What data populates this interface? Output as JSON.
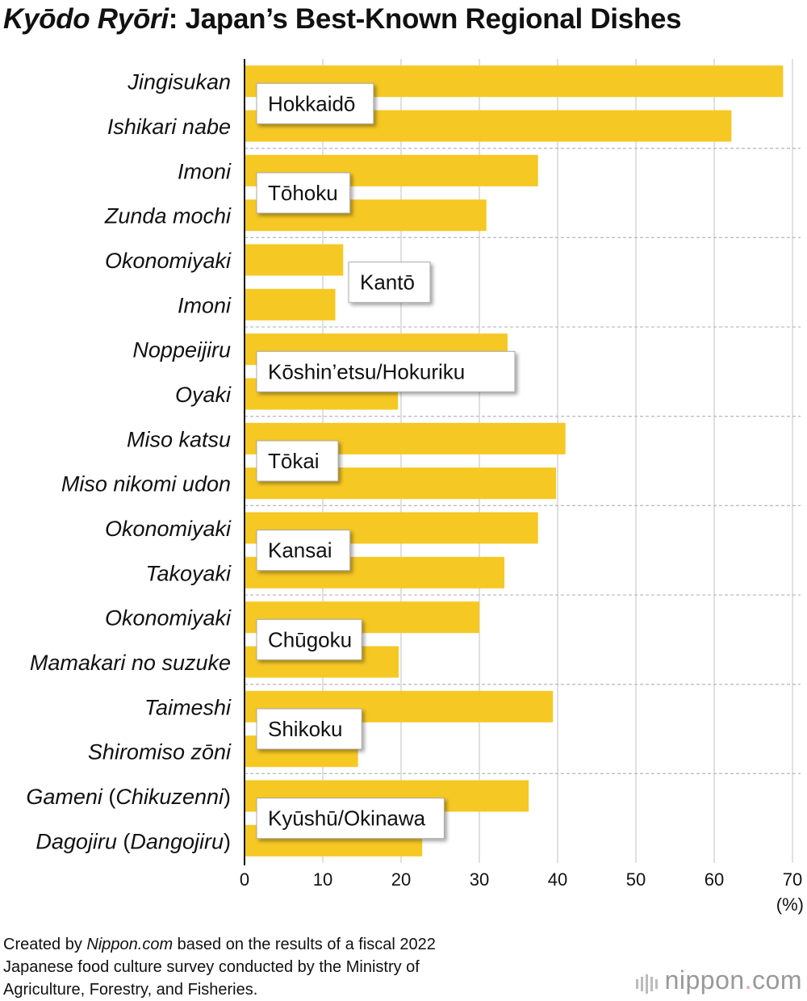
{
  "title": {
    "italic_part": "Kyōdo Ryōri",
    "rest": ": Japan’s Best-Known Regional Dishes"
  },
  "chart_data": {
    "type": "bar",
    "orientation": "horizontal",
    "unit_label": "(%)",
    "xlim": [
      0,
      70
    ],
    "xticks": [
      0,
      10,
      20,
      30,
      40,
      50,
      60,
      70
    ],
    "grid": true,
    "bar_color": "#f6c823",
    "categories": [
      {
        "dish": "Jingisukan",
        "region": "Hokkaidō",
        "value": 68.8
      },
      {
        "dish": "Ishikari nabe",
        "region": "Hokkaidō",
        "value": 62.2
      },
      {
        "dish": "Imoni",
        "region": "Tōhoku",
        "value": 37.5
      },
      {
        "dish": "Zunda mochi",
        "region": "Tōhoku",
        "value": 30.9
      },
      {
        "dish": "Okonomiyaki",
        "region": "Kantō",
        "value": 12.6
      },
      {
        "dish": "Imoni",
        "region": "Kantō",
        "value": 11.6
      },
      {
        "dish": "Noppeijiru",
        "region": "Kōshin’etsu/Hokuriku",
        "value": 33.6
      },
      {
        "dish": "Oyaki",
        "region": "Kōshin’etsu/Hokuriku",
        "value": 19.6
      },
      {
        "dish": "Miso katsu",
        "region": "Tōkai",
        "value": 41.0
      },
      {
        "dish": "Miso nikomi udon",
        "region": "Tōkai",
        "value": 39.8
      },
      {
        "dish": "Okonomiyaki",
        "region": "Kansai",
        "value": 37.5
      },
      {
        "dish": "Takoyaki",
        "region": "Kansai",
        "value": 33.2
      },
      {
        "dish": "Okonomiyaki",
        "region": "Chūgoku",
        "value": 30.0
      },
      {
        "dish": "Mamakari no suzuke",
        "region": "Chūgoku",
        "value": 19.7
      },
      {
        "dish": "Taimeshi",
        "region": "Shikoku",
        "value": 39.4
      },
      {
        "dish": "Shiromiso zōni",
        "region": "Shikoku",
        "value": 14.5
      },
      {
        "dish": "Gameni (Chikuzenni)",
        "region": "Kyūshū/Okinawa",
        "value": 36.3
      },
      {
        "dish": "Dagojiru (Dangojiru)",
        "region": "Kyūshū/Okinawa",
        "value": 22.7
      }
    ],
    "regions": [
      "Hokkaidō",
      "Tōhoku",
      "Kantō",
      "Kōshin’etsu/Hokuriku",
      "Tōkai",
      "Kansai",
      "Chūgoku",
      "Shikoku",
      "Kyūshū/Okinawa"
    ]
  },
  "footer": {
    "line1_pre": "Created by ",
    "line1_ital": "Nippon.com",
    "line1_post": " based on the results of a fiscal 2022",
    "line2": "Japanese food culture survey conducted by the Ministry of",
    "line3": "Agriculture, Forestry, and Fisheries."
  },
  "logo": {
    "name": "nippon",
    "dot": ".",
    "suffix": "com"
  }
}
